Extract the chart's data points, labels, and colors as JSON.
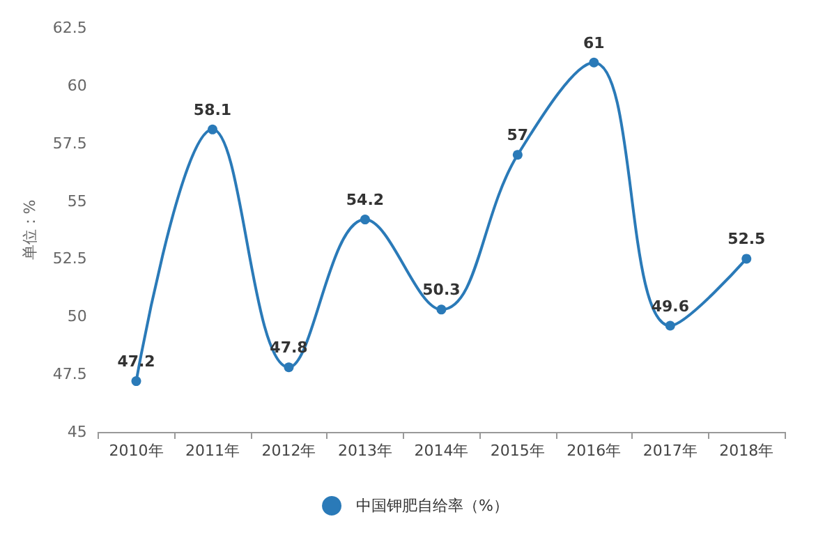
{
  "chart_data": {
    "type": "line",
    "ylabel": "单位：%",
    "categories": [
      "2010年",
      "2011年",
      "2012年",
      "2013年",
      "2014年",
      "2015年",
      "2016年",
      "2017年",
      "2018年"
    ],
    "series": [
      {
        "name": "中国钾肥自给率（%）",
        "color": "#2a7ab8",
        "values": [
          47.2,
          58.1,
          47.8,
          54.2,
          50.3,
          57,
          61,
          49.6,
          52.5
        ]
      }
    ],
    "ylim": [
      45,
      62.5
    ],
    "yticks": [
      45,
      47.5,
      50,
      52.5,
      55,
      57.5,
      60,
      62.5
    ],
    "grid": false,
    "legend": "bottom",
    "marker": "circle",
    "data_labels": true,
    "line_style": "solid"
  }
}
